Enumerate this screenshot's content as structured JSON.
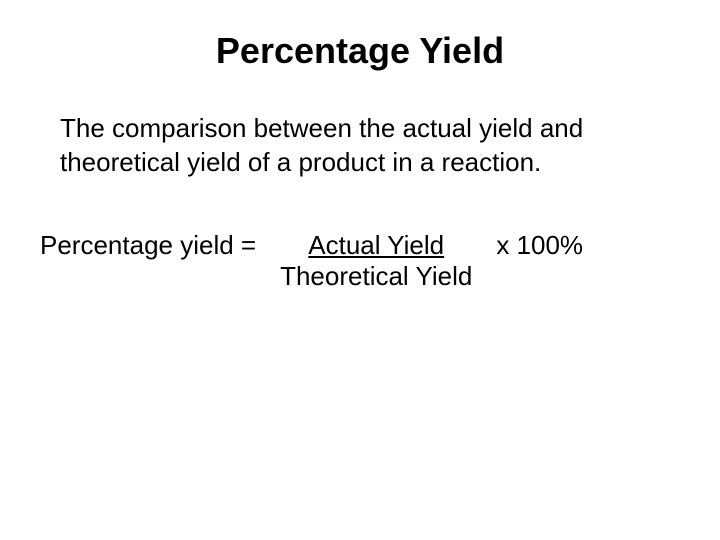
{
  "slide": {
    "title": "Percentage Yield",
    "definition": "The comparison between the actual yield and theoretical yield of a product in a reaction.",
    "formula": {
      "left_label": "Percentage yield =",
      "numerator": "Actual Yield",
      "denominator": "Theoretical Yield",
      "multiplier": "x 100%"
    },
    "colors": {
      "background": "#ffffff",
      "text": "#000000"
    },
    "typography": {
      "title_fontsize": 36,
      "title_fontweight": "bold",
      "body_fontsize": 26,
      "font_family": "Arial"
    }
  }
}
